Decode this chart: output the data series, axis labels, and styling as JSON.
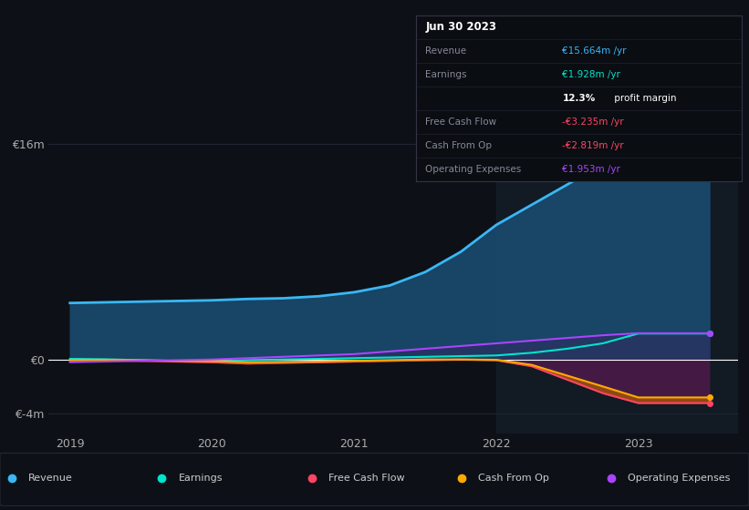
{
  "background_color": "#0d1117",
  "plot_bg_color": "#0d1117",
  "fig_size": [
    8.21,
    5.6
  ],
  "dpi": 100,
  "x_years": [
    2019.0,
    2019.25,
    2019.5,
    2019.75,
    2020.0,
    2020.25,
    2020.5,
    2020.75,
    2021.0,
    2021.25,
    2021.5,
    2021.75,
    2022.0,
    2022.25,
    2022.5,
    2022.75,
    2023.0,
    2023.25,
    2023.5
  ],
  "revenue": [
    4.2,
    4.25,
    4.3,
    4.35,
    4.4,
    4.5,
    4.55,
    4.7,
    5.0,
    5.5,
    6.5,
    8.0,
    10.0,
    11.5,
    13.0,
    14.5,
    15.664,
    15.664,
    15.664
  ],
  "earnings": [
    0.05,
    0.02,
    -0.05,
    -0.1,
    -0.15,
    -0.05,
    0.0,
    0.05,
    0.1,
    0.15,
    0.2,
    0.25,
    0.3,
    0.5,
    0.8,
    1.2,
    1.928,
    1.928,
    1.928
  ],
  "free_cash_flow": [
    -0.1,
    -0.05,
    -0.1,
    -0.15,
    -0.2,
    -0.3,
    -0.25,
    -0.2,
    -0.15,
    -0.1,
    -0.05,
    0.0,
    -0.05,
    -0.5,
    -1.5,
    -2.5,
    -3.235,
    -3.235,
    -3.235
  ],
  "cash_from_op": [
    -0.05,
    -0.02,
    -0.05,
    -0.1,
    -0.12,
    -0.2,
    -0.18,
    -0.15,
    -0.1,
    -0.05,
    0.0,
    0.0,
    -0.02,
    -0.4,
    -1.2,
    -2.0,
    -2.819,
    -2.819,
    -2.819
  ],
  "operating_exp": [
    -0.2,
    -0.15,
    -0.1,
    -0.05,
    0.0,
    0.1,
    0.2,
    0.3,
    0.4,
    0.6,
    0.8,
    1.0,
    1.2,
    1.4,
    1.6,
    1.8,
    1.953,
    1.953,
    1.953
  ],
  "revenue_color": "#3ab7f5",
  "earnings_color": "#00e5cc",
  "fcf_color": "#ff4466",
  "cash_op_color": "#ffaa00",
  "opex_color": "#aa44ff",
  "revenue_fill": "#1a4a6e",
  "ylim": [
    -5.5,
    18.0
  ],
  "xlim": [
    2018.85,
    2023.7
  ],
  "xtick_years": [
    2019,
    2020,
    2021,
    2022,
    2023
  ],
  "vline_x": 2022.0,
  "legend_labels": [
    "Revenue",
    "Earnings",
    "Free Cash Flow",
    "Cash From Op",
    "Operating Expenses"
  ],
  "legend_colors": [
    "#3ab7f5",
    "#00e5cc",
    "#ff4466",
    "#ffaa00",
    "#aa44ff"
  ],
  "grid_color": "#2a3040",
  "zero_line_color": "#ffffff",
  "tooltip_rows": [
    {
      "label": "Jun 30 2023",
      "value": "",
      "val_color": "#ffffff",
      "is_header": true
    },
    {
      "label": "Revenue",
      "value": "€15.664m /yr",
      "val_color": "#3ab7f5",
      "is_header": false,
      "bold_part": ""
    },
    {
      "label": "Earnings",
      "value": "€1.928m /yr",
      "val_color": "#00e5cc",
      "is_header": false,
      "bold_part": ""
    },
    {
      "label": "",
      "value": " profit margin",
      "val_color": "#ffffff",
      "is_header": false,
      "bold_part": "12.3%"
    },
    {
      "label": "Free Cash Flow",
      "value": "-€3.235m /yr",
      "val_color": "#ff4466",
      "is_header": false,
      "bold_part": ""
    },
    {
      "label": "Cash From Op",
      "value": "-€2.819m /yr",
      "val_color": "#ff4466",
      "is_header": false,
      "bold_part": ""
    },
    {
      "label": "Operating Expenses",
      "value": "€1.953m /yr",
      "val_color": "#aa44ff",
      "is_header": false,
      "bold_part": ""
    }
  ]
}
